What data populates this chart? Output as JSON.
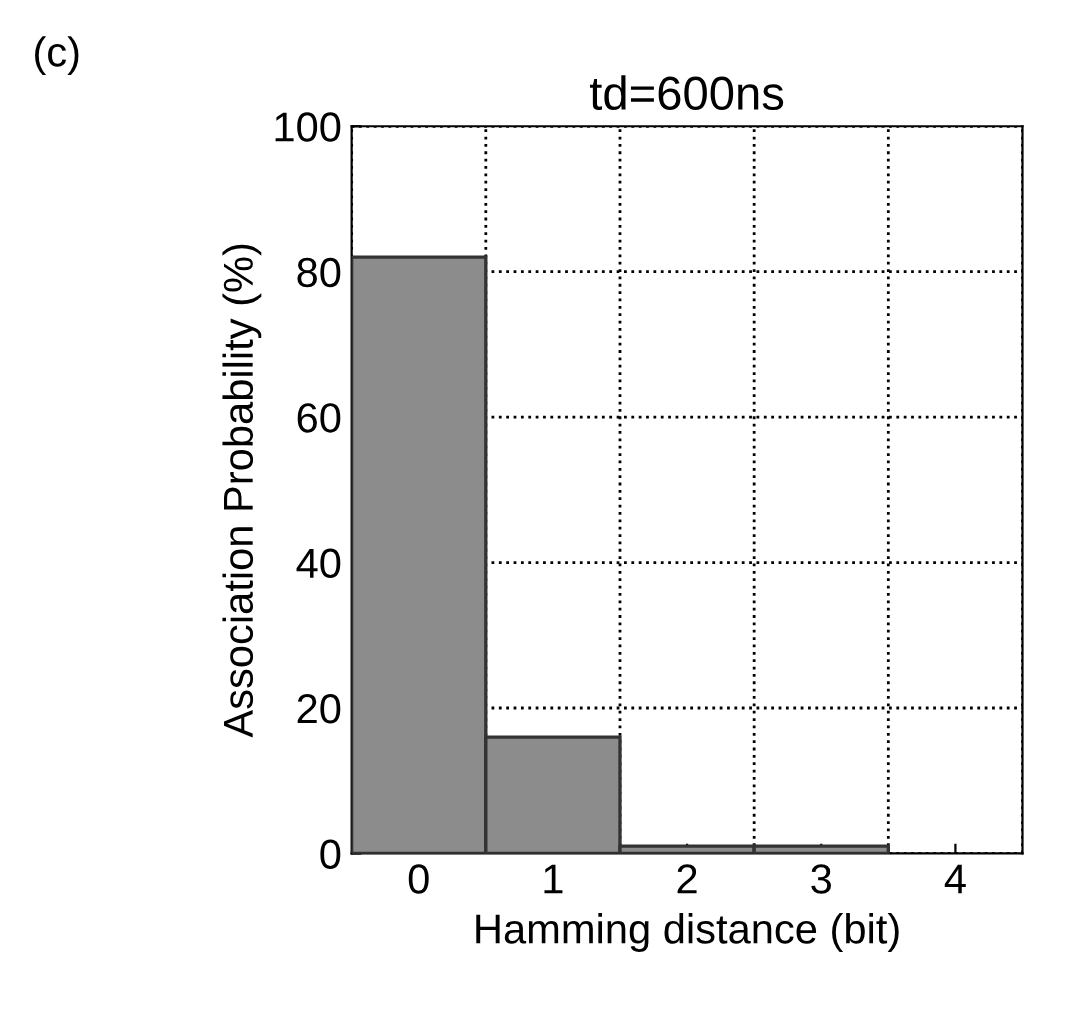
{
  "chart_data": {
    "type": "histogram",
    "title": "td=600ns",
    "xlabel": "Hamming distance (bit)",
    "ylabel": "Association Probability (%)",
    "bins": [
      -0.5,
      0.5,
      1.5,
      2.5,
      3.5,
      4.5
    ],
    "values": [
      82,
      16,
      1,
      1,
      0
    ],
    "color": "#8c8c8c",
    "xlim": [
      -0.5,
      4.5
    ],
    "xticks": [
      0,
      1,
      2,
      3,
      4
    ],
    "ylim": [
      0,
      100
    ],
    "yticks": [
      0,
      20,
      40,
      60,
      80,
      100
    ],
    "grid": true,
    "annotations": [
      "(c)"
    ]
  }
}
